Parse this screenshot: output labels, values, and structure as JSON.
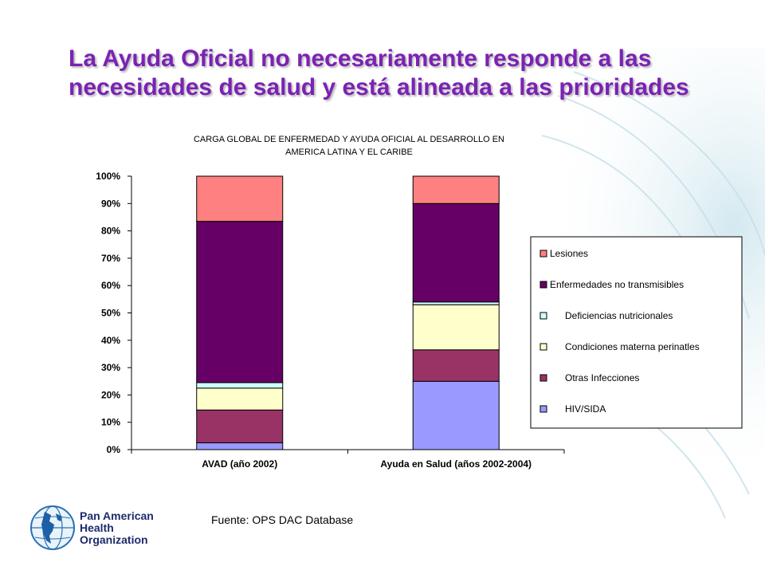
{
  "slide": {
    "title_lines": [
      "La Ayuda Oficial no necesariamente responde a las",
      "necesidades de salud y está alineada a las prioridades"
    ],
    "source": "Fuente: OPS  DAC Database",
    "org_lines": [
      "Pan American",
      "Health",
      "Organization"
    ],
    "title_color": "#7B22B4"
  },
  "chart_data": {
    "type": "bar",
    "stacked": true,
    "title_lines": [
      "CARGA GLOBAL DE ENFERMEDAD Y AYUDA OFICIAL AL DESARROLLO EN",
      "AMERICA LATINA Y EL CARIBE"
    ],
    "categories": [
      "AVAD (año 2002)",
      "Ayuda en Salud (años 2002-2004)"
    ],
    "y_ticks": [
      "0%",
      "10%",
      "20%",
      "30%",
      "40%",
      "50%",
      "60%",
      "70%",
      "80%",
      "90%",
      "100%"
    ],
    "ylim": [
      0,
      100
    ],
    "grid": false,
    "legend_position": "right",
    "series": [
      {
        "name": "HIV/SIDA",
        "values": [
          2.5,
          25
        ],
        "color": "#9999FF"
      },
      {
        "name": "Otras Infecciones",
        "values": [
          12,
          11.5
        ],
        "color": "#993366"
      },
      {
        "name": "Condiciones materna perinatles",
        "values": [
          8,
          16.5
        ],
        "color": "#FFFFCC"
      },
      {
        "name": "Deficiencias nutricionales",
        "values": [
          2,
          1
        ],
        "color": "#CCFFFF"
      },
      {
        "name": "Enfermedades no transmisibles",
        "values": [
          59,
          36
        ],
        "color": "#660066"
      },
      {
        "name": "Lesiones",
        "values": [
          16.5,
          10
        ],
        "color": "#FF8080"
      }
    ]
  }
}
